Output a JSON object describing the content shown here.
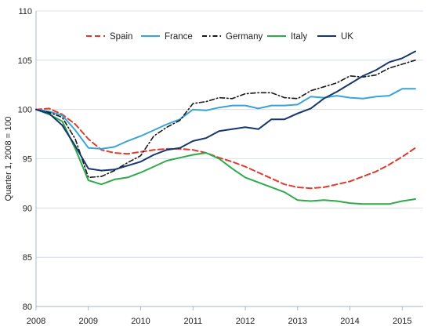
{
  "chart_data": {
    "type": "line",
    "ylabel": "Quarter 1, 2008 = 100",
    "xlabel": "",
    "ylim": [
      80,
      110
    ],
    "xlim": [
      2008,
      2015.4
    ],
    "yticks": [
      80,
      85,
      90,
      95,
      100,
      105,
      110
    ],
    "xticks": [
      2008,
      2009,
      2010,
      2011,
      2012,
      2013,
      2014,
      2015
    ],
    "grid": "horizontal",
    "legend_position": "top",
    "series": [
      {
        "name": "Spain",
        "color": "#e03a2f",
        "style": "dashed",
        "x": [
          2008.0,
          2008.25,
          2008.5,
          2008.75,
          2009.0,
          2009.25,
          2009.5,
          2009.75,
          2010.0,
          2010.25,
          2010.5,
          2010.75,
          2011.0,
          2011.25,
          2011.5,
          2011.75,
          2012.0,
          2012.25,
          2012.5,
          2012.75,
          2013.0,
          2013.25,
          2013.5,
          2013.75,
          2014.0,
          2014.25,
          2014.5,
          2014.75,
          2015.0,
          2015.25
        ],
        "y": [
          100.0,
          100.1,
          99.5,
          98.5,
          97.0,
          95.9,
          95.6,
          95.5,
          95.7,
          95.9,
          96.0,
          96.0,
          95.9,
          95.6,
          95.1,
          94.7,
          94.2,
          93.6,
          93.0,
          92.4,
          92.1,
          92.0,
          92.1,
          92.4,
          92.7,
          93.2,
          93.7,
          94.4,
          95.2,
          96.1
        ]
      },
      {
        "name": "France",
        "color": "#3aa4d8",
        "style": "solid",
        "x": [
          2008.0,
          2008.25,
          2008.5,
          2008.75,
          2009.0,
          2009.25,
          2009.5,
          2009.75,
          2010.0,
          2010.25,
          2010.5,
          2010.75,
          2011.0,
          2011.25,
          2011.5,
          2011.75,
          2012.0,
          2012.25,
          2012.5,
          2012.75,
          2013.0,
          2013.25,
          2013.5,
          2013.75,
          2014.0,
          2014.25,
          2014.5,
          2014.75,
          2015.0,
          2015.25
        ],
        "y": [
          100.0,
          99.8,
          99.4,
          97.9,
          96.1,
          96.0,
          96.2,
          96.8,
          97.3,
          97.9,
          98.5,
          99.0,
          100.0,
          99.9,
          100.2,
          100.4,
          100.4,
          100.1,
          100.4,
          100.4,
          100.5,
          101.3,
          101.2,
          101.4,
          101.2,
          101.1,
          101.3,
          101.4,
          102.1,
          102.1
        ]
      },
      {
        "name": "Germany",
        "color": "#1a1a1a",
        "style": "dashdot",
        "x": [
          2008.0,
          2008.25,
          2008.5,
          2008.75,
          2009.0,
          2009.25,
          2009.5,
          2009.75,
          2010.0,
          2010.25,
          2010.5,
          2010.75,
          2011.0,
          2011.25,
          2011.5,
          2011.75,
          2012.0,
          2012.25,
          2012.5,
          2012.75,
          2013.0,
          2013.25,
          2013.5,
          2013.75,
          2014.0,
          2014.25,
          2014.5,
          2014.75,
          2015.0,
          2015.25
        ],
        "y": [
          100.0,
          99.7,
          99.2,
          97.0,
          93.1,
          93.2,
          93.8,
          94.6,
          95.3,
          97.3,
          98.2,
          98.9,
          100.6,
          100.8,
          101.2,
          101.1,
          101.6,
          101.7,
          101.7,
          101.2,
          101.1,
          101.9,
          102.3,
          102.7,
          103.4,
          103.3,
          103.5,
          104.2,
          104.6,
          105.0
        ]
      },
      {
        "name": "Italy",
        "color": "#2eaa4a",
        "style": "solid",
        "x": [
          2008.0,
          2008.25,
          2008.5,
          2008.75,
          2009.0,
          2009.25,
          2009.5,
          2009.75,
          2010.0,
          2010.25,
          2010.5,
          2010.75,
          2011.0,
          2011.25,
          2011.5,
          2011.75,
          2012.0,
          2012.25,
          2012.5,
          2012.75,
          2013.0,
          2013.25,
          2013.5,
          2013.75,
          2014.0,
          2014.25,
          2014.5,
          2014.75,
          2015.0,
          2015.25
        ],
        "y": [
          100.0,
          99.5,
          98.8,
          96.0,
          92.8,
          92.4,
          92.9,
          93.1,
          93.6,
          94.2,
          94.8,
          95.1,
          95.4,
          95.6,
          95.0,
          94.0,
          93.1,
          92.6,
          92.1,
          91.6,
          90.8,
          90.7,
          90.8,
          90.7,
          90.5,
          90.4,
          90.4,
          90.4,
          90.7,
          90.9
        ]
      },
      {
        "name": "UK",
        "color": "#16366e",
        "style": "solid",
        "x": [
          2008.0,
          2008.25,
          2008.5,
          2008.75,
          2009.0,
          2009.25,
          2009.5,
          2009.75,
          2010.0,
          2010.25,
          2010.5,
          2010.75,
          2011.0,
          2011.25,
          2011.5,
          2011.75,
          2012.0,
          2012.25,
          2012.5,
          2012.75,
          2013.0,
          2013.25,
          2013.5,
          2013.75,
          2014.0,
          2014.25,
          2014.5,
          2014.75,
          2015.0,
          2015.25
        ],
        "y": [
          100.0,
          99.6,
          98.4,
          96.3,
          94.0,
          93.8,
          93.9,
          94.3,
          94.7,
          95.4,
          95.9,
          96.1,
          96.8,
          97.1,
          97.8,
          98.0,
          98.2,
          98.0,
          99.0,
          99.0,
          99.6,
          100.1,
          101.1,
          101.8,
          102.6,
          103.4,
          104.0,
          104.8,
          105.2,
          105.9
        ]
      }
    ]
  }
}
